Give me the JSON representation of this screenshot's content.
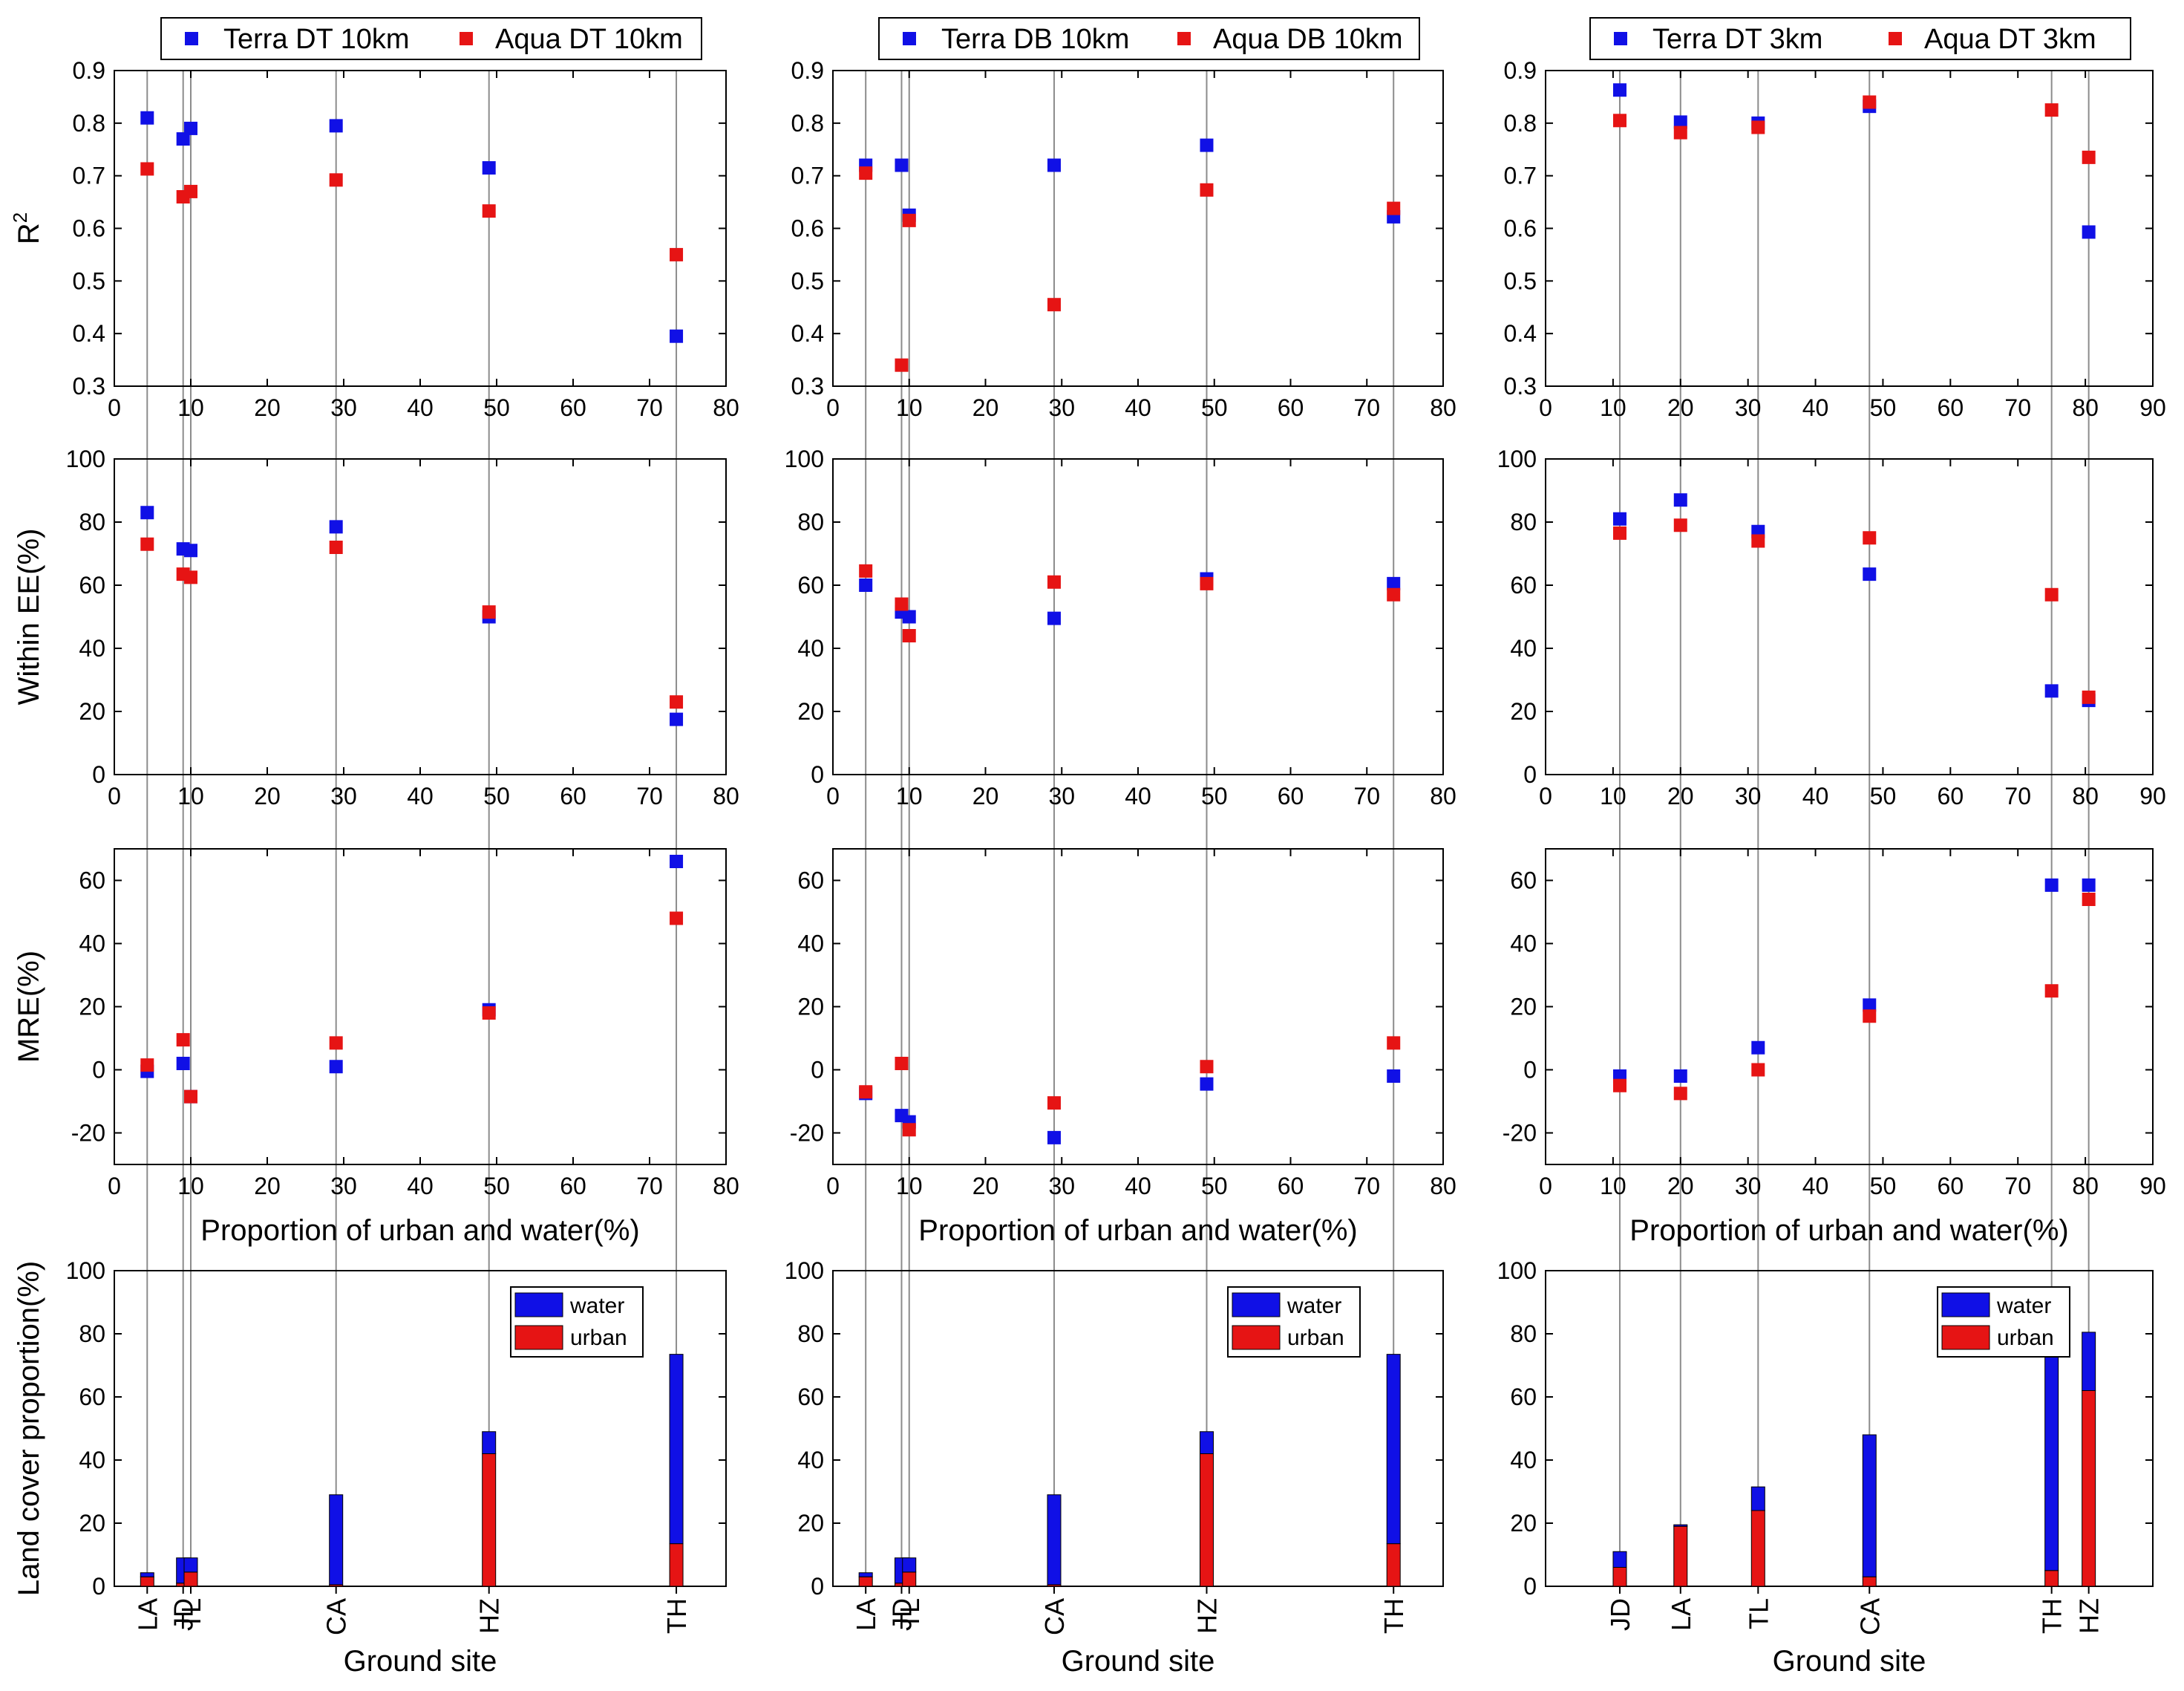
{
  "figure": {
    "x_label": "Proportion of urban and water(%)",
    "site_axis_label": "Ground site",
    "row_ylabels": [
      "R2",
      "Within EE(%)",
      "MRE(%)",
      "Land cover proportion(%)"
    ],
    "bar_legend": [
      "water",
      "urban"
    ],
    "colors": {
      "terra": "#1010e6",
      "aqua": "#e61414",
      "water": "#1010e6",
      "urban": "#e61414",
      "guide": "#8c8c8c"
    }
  },
  "chart_data": [
    {
      "type": "scatter",
      "column": "DT 10km",
      "legend": [
        "Terra DT 10km",
        "Aqua DT 10km"
      ],
      "xlim": [
        0,
        80
      ],
      "x_ticks": [
        0,
        10,
        20,
        30,
        40,
        50,
        60,
        70,
        80
      ],
      "sites": [
        {
          "name": "LA",
          "x": 4.3,
          "water": 1.3,
          "urban": 3.0
        },
        {
          "name": "JD",
          "x": 9.0,
          "water": 8.0,
          "urban": 1.0
        },
        {
          "name": "TL",
          "x": 10.0,
          "water": 4.5,
          "urban": 4.5
        },
        {
          "name": "CA",
          "x": 29.0,
          "water": 28.5,
          "urban": 0.5
        },
        {
          "name": "HZ",
          "x": 49.0,
          "water": 7.0,
          "urban": 42.0
        },
        {
          "name": "TH",
          "x": 73.5,
          "water": 60.0,
          "urban": 13.5
        }
      ],
      "panels": [
        {
          "metric": "R2",
          "ylim": [
            0.3,
            0.9
          ],
          "y_ticks": [
            "0.3",
            "0.4",
            "0.5",
            "0.6",
            "0.7",
            "0.8",
            "0.9"
          ],
          "series": [
            {
              "name": "Terra DT 10km",
              "values": [
                0.81,
                0.77,
                0.79,
                0.795,
                0.715,
                0.395
              ]
            },
            {
              "name": "Aqua DT 10km",
              "values": [
                0.713,
                0.66,
                0.67,
                0.692,
                0.633,
                0.55
              ]
            }
          ]
        },
        {
          "metric": "Within EE(%)",
          "ylim": [
            0,
            100
          ],
          "y_ticks": [
            "0",
            "20",
            "40",
            "60",
            "80",
            "100"
          ],
          "series": [
            {
              "name": "Terra DT 10km",
              "values": [
                83,
                71.5,
                71,
                78.5,
                50,
                17.5
              ]
            },
            {
              "name": "Aqua DT 10km",
              "values": [
                73,
                63.5,
                62.5,
                72,
                51.5,
                23
              ]
            }
          ]
        },
        {
          "metric": "MRE(%)",
          "ylim": [
            -30,
            70
          ],
          "y_ticks": [
            "-20",
            "0",
            "20",
            "40",
            "60"
          ],
          "series": [
            {
              "name": "Terra DT 10km",
              "values": [
                -0.5,
                2,
                -8.5,
                1,
                19,
                66
              ]
            },
            {
              "name": "Aqua DT 10km",
              "values": [
                1.5,
                9.5,
                -8.5,
                8.5,
                18,
                48
              ]
            }
          ]
        }
      ],
      "bars": {
        "ylim": [
          0,
          100
        ],
        "y_ticks": [
          "0",
          "20",
          "40",
          "60",
          "80",
          "100"
        ],
        "type": "stacked bar"
      }
    },
    {
      "type": "scatter",
      "column": "DB 10km",
      "legend": [
        "Terra DB 10km",
        "Aqua DB 10km"
      ],
      "xlim": [
        0,
        80
      ],
      "x_ticks": [
        0,
        10,
        20,
        30,
        40,
        50,
        60,
        70,
        80
      ],
      "sites": [
        {
          "name": "LA",
          "x": 4.3,
          "water": 1.3,
          "urban": 3.0
        },
        {
          "name": "JD",
          "x": 9.0,
          "water": 8.0,
          "urban": 1.0
        },
        {
          "name": "TL",
          "x": 10.0,
          "water": 4.5,
          "urban": 4.5
        },
        {
          "name": "CA",
          "x": 29.0,
          "water": 28.5,
          "urban": 0.5
        },
        {
          "name": "HZ",
          "x": 49.0,
          "water": 7.0,
          "urban": 42.0
        },
        {
          "name": "TH",
          "x": 73.5,
          "water": 60.0,
          "urban": 13.5
        }
      ],
      "panels": [
        {
          "metric": "R2",
          "ylim": [
            0.3,
            0.9
          ],
          "y_ticks": [
            "0.3",
            "0.4",
            "0.5",
            "0.6",
            "0.7",
            "0.8",
            "0.9"
          ],
          "series": [
            {
              "name": "Terra DB 10km",
              "values": [
                0.72,
                0.72,
                0.625,
                0.72,
                0.758,
                0.622
              ]
            },
            {
              "name": "Aqua DB 10km",
              "values": [
                0.705,
                0.34,
                0.615,
                0.455,
                0.673,
                0.638
              ]
            }
          ]
        },
        {
          "metric": "Within EE(%)",
          "ylim": [
            0,
            100
          ],
          "y_ticks": [
            "0",
            "20",
            "40",
            "60",
            "80",
            "100"
          ],
          "series": [
            {
              "name": "Terra DB 10km",
              "values": [
                60,
                51.5,
                50,
                49.5,
                62,
                60.5
              ]
            },
            {
              "name": "Aqua DB 10km",
              "values": [
                64.5,
                54,
                44,
                61,
                60.5,
                57
              ]
            }
          ]
        },
        {
          "metric": "MRE(%)",
          "ylim": [
            -30,
            70
          ],
          "y_ticks": [
            "-20",
            "0",
            "20",
            "40",
            "60"
          ],
          "series": [
            {
              "name": "Terra DB 10km",
              "values": [
                -7.5,
                -14.5,
                -16.5,
                -21.5,
                -4.5,
                -2
              ]
            },
            {
              "name": "Aqua DB 10km",
              "values": [
                -7,
                2,
                -19,
                -10.5,
                1,
                8.5
              ]
            }
          ]
        }
      ],
      "bars": {
        "ylim": [
          0,
          100
        ],
        "y_ticks": [
          "0",
          "20",
          "40",
          "60",
          "80",
          "100"
        ],
        "type": "stacked bar"
      }
    },
    {
      "type": "scatter",
      "column": "DT 3km",
      "legend": [
        "Terra DT 3km",
        "Aqua DT 3km"
      ],
      "xlim": [
        0,
        90
      ],
      "x_ticks": [
        0,
        10,
        20,
        30,
        40,
        50,
        60,
        70,
        80,
        90
      ],
      "sites": [
        {
          "name": "JD",
          "x": 11.0,
          "water": 5.0,
          "urban": 6.0
        },
        {
          "name": "LA",
          "x": 20.0,
          "water": 0.5,
          "urban": 19.0
        },
        {
          "name": "TL",
          "x": 31.5,
          "water": 7.5,
          "urban": 24.0
        },
        {
          "name": "CA",
          "x": 48.0,
          "water": 45.0,
          "urban": 3.0
        },
        {
          "name": "TH",
          "x": 75.0,
          "water": 70.0,
          "urban": 5.0
        },
        {
          "name": "HZ",
          "x": 80.5,
          "water": 18.5,
          "urban": 62.0
        }
      ],
      "panels": [
        {
          "metric": "R2",
          "ylim": [
            0.3,
            0.9
          ],
          "y_ticks": [
            "0.3",
            "0.4",
            "0.5",
            "0.6",
            "0.7",
            "0.8",
            "0.9"
          ],
          "series": [
            {
              "name": "Terra DT 3km",
              "values": [
                0.863,
                0.802,
                0.8,
                0.832,
                null,
                0.593
              ]
            },
            {
              "name": "Aqua DT 3km",
              "values": [
                0.805,
                0.782,
                0.792,
                0.84,
                0.825,
                0.735
              ]
            }
          ]
        },
        {
          "metric": "Within EE(%)",
          "ylim": [
            0,
            100
          ],
          "y_ticks": [
            "0",
            "20",
            "40",
            "60",
            "80",
            "100"
          ],
          "series": [
            {
              "name": "Terra DT 3km",
              "values": [
                81,
                87,
                77,
                63.5,
                26.5,
                23.5
              ]
            },
            {
              "name": "Aqua DT 3km",
              "values": [
                76.5,
                79,
                74,
                75,
                57,
                24.5
              ]
            }
          ]
        },
        {
          "metric": "MRE(%)",
          "ylim": [
            -30,
            70
          ],
          "y_ticks": [
            "-20",
            "0",
            "20",
            "40",
            "60"
          ],
          "series": [
            {
              "name": "Terra DT 3km",
              "values": [
                -2,
                -2,
                7,
                20.5,
                58.5,
                58.5
              ]
            },
            {
              "name": "Aqua DT 3km",
              "values": [
                -5,
                -7.5,
                0,
                17,
                25,
                54
              ]
            }
          ]
        }
      ],
      "bars": {
        "ylim": [
          0,
          100
        ],
        "y_ticks": [
          "0",
          "20",
          "40",
          "60",
          "80",
          "100"
        ],
        "type": "stacked bar"
      }
    }
  ]
}
